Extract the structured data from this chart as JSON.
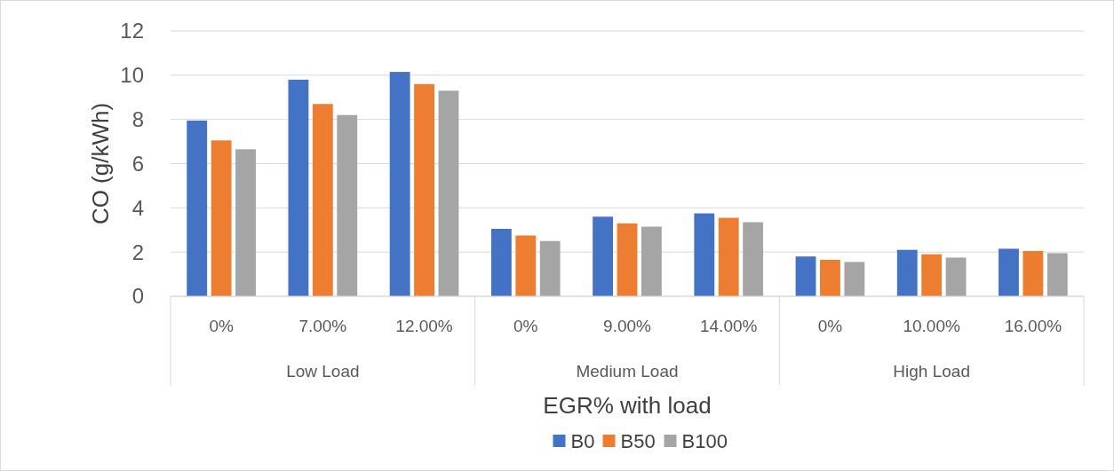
{
  "chart_data": {
    "type": "bar",
    "xlabel": "EGR% with load",
    "ylabel": "CO (g/kWh)",
    "categories": [
      "0%",
      "7.00%",
      "12.00%",
      "0%",
      "9.00%",
      "14.00%",
      "0%",
      "10.00%",
      "16.00%"
    ],
    "annotations": [
      "Low Load",
      "Medium Load",
      "High Load"
    ],
    "series": [
      {
        "name": "B0",
        "color": "#4472c4",
        "values": [
          7.95,
          9.8,
          10.15,
          3.05,
          3.6,
          3.75,
          1.8,
          2.1,
          2.15
        ]
      },
      {
        "name": "B50",
        "color": "#ed7d31",
        "values": [
          7.05,
          8.7,
          9.6,
          2.75,
          3.3,
          3.55,
          1.65,
          1.9,
          2.05
        ]
      },
      {
        "name": "B100",
        "color": "#a5a5a5",
        "values": [
          6.65,
          8.2,
          9.3,
          2.5,
          3.15,
          3.35,
          1.55,
          1.75,
          1.95
        ]
      }
    ],
    "ylim": [
      0,
      12
    ],
    "yticks": [
      0,
      2,
      4,
      6,
      8,
      10,
      12
    ],
    "grid": "y",
    "legend": "bottom"
  }
}
